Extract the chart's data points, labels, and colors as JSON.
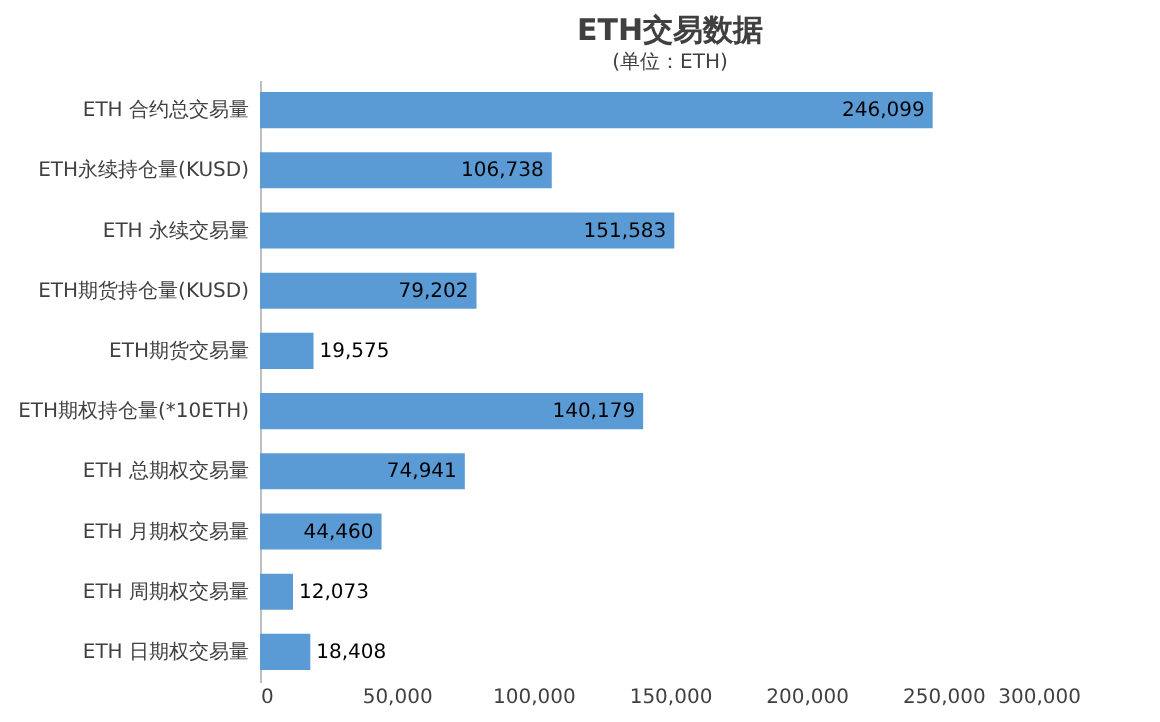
{
  "chart_data": {
    "type": "bar",
    "orientation": "horizontal",
    "title": "ETH交易数据",
    "subtitle": "(单位：ETH)",
    "categories": [
      "ETH 合约总交易量",
      "ETH永续持仓量(KUSD)",
      "ETH 永续交易量",
      "ETH期货持仓量(KUSD)",
      "ETH期货交易量",
      "ETH期权持仓量(*10ETH)",
      "ETH 总期权交易量",
      "ETH 月期权交易量",
      "ETH 周期权交易量",
      "ETH 日期权交易量"
    ],
    "values": [
      246099,
      106738,
      151583,
      79202,
      19575,
      140179,
      74941,
      44460,
      12073,
      18408
    ],
    "value_labels": [
      "246,099",
      "106,738",
      "151,583",
      "79,202",
      "19,575",
      "140,179",
      "74,941",
      "44,460",
      "12,073",
      "18,408"
    ],
    "color": "#5b9bd5",
    "grid": false,
    "xlim": [
      0,
      300000
    ],
    "xticks": [
      {
        "value": 0,
        "label": "0"
      },
      {
        "value": 50000,
        "label": "50,000"
      },
      {
        "value": 100000,
        "label": "100,000"
      },
      {
        "value": 150000,
        "label": "150,000"
      },
      {
        "value": 200000,
        "label": "200,000"
      },
      {
        "value": 250000,
        "label": "250,000"
      },
      {
        "value": 300000,
        "label": "300,000"
      }
    ]
  }
}
